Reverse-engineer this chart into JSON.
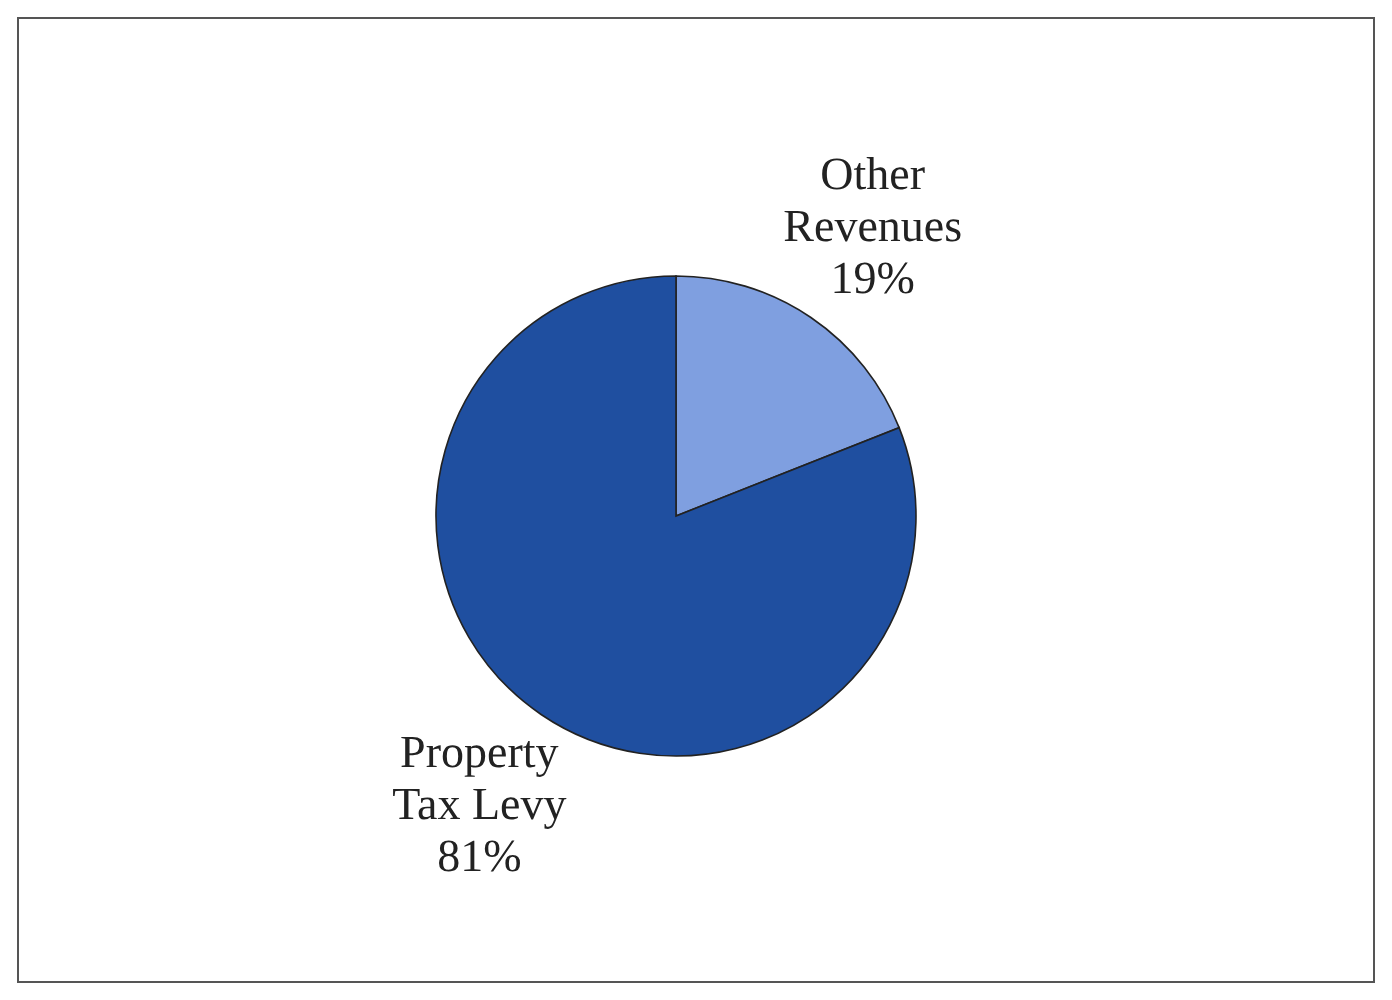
{
  "chart_data": {
    "type": "pie",
    "categories": [
      "Other Revenues",
      "Property Tax Levy"
    ],
    "values": [
      19,
      81
    ],
    "colors": [
      "#7f9fe0",
      "#1f4fa0"
    ],
    "value_labels": [
      "19%",
      "81%"
    ],
    "legend": false
  }
}
